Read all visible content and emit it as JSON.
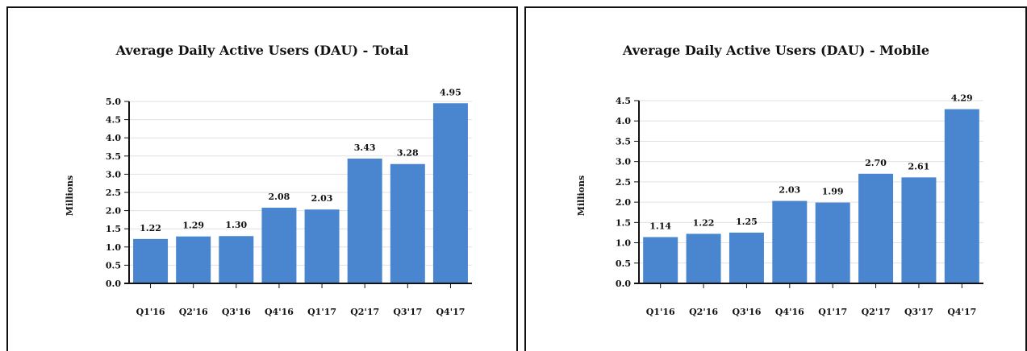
{
  "chart_data": [
    {
      "type": "bar",
      "title": "Average Daily Active Users (DAU) - Total",
      "ylabel": "Millions",
      "xlabel": "",
      "categories": [
        "Q1'16",
        "Q2'16",
        "Q3'16",
        "Q4'16",
        "Q1'17",
        "Q2'17",
        "Q3'17",
        "Q4'17"
      ],
      "values": [
        1.22,
        1.29,
        1.3,
        2.08,
        2.03,
        3.43,
        3.28,
        4.95
      ],
      "data_labels": [
        "1.22",
        "1.29",
        "1.30",
        "2.08",
        "2.03",
        "3.43",
        "3.28",
        "4.95"
      ],
      "yticks": [
        "0.0",
        "0.5",
        "1.0",
        "1.5",
        "2.0",
        "2.5",
        "3.0",
        "3.5",
        "4.0",
        "4.5",
        "5.0"
      ],
      "ylim": [
        0,
        5.0
      ],
      "grid": true,
      "color": "#4a86d0"
    },
    {
      "type": "bar",
      "title": "Average Daily Active Users (DAU) - Mobile",
      "ylabel": "Millions",
      "xlabel": "",
      "categories": [
        "Q1'16",
        "Q2'16",
        "Q3'16",
        "Q4'16",
        "Q1'17",
        "Q2'17",
        "Q3'17",
        "Q4'17"
      ],
      "values": [
        1.14,
        1.22,
        1.25,
        2.03,
        1.99,
        2.7,
        2.61,
        4.29
      ],
      "data_labels": [
        "1.14",
        "1.22",
        "1.25",
        "2.03",
        "1.99",
        "2.70",
        "2.61",
        "4.29"
      ],
      "yticks": [
        "0.0",
        "0.5",
        "1.0",
        "1.5",
        "2.0",
        "2.5",
        "3.0",
        "3.5",
        "4.0",
        "4.5"
      ],
      "ylim": [
        0,
        4.5
      ],
      "grid": true,
      "color": "#4a86d0"
    }
  ]
}
